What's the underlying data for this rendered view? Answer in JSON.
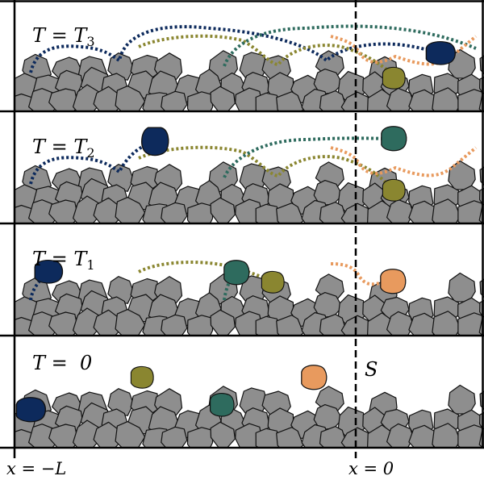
{
  "panels": [
    {
      "label": "T = T",
      "subscript": "3"
    },
    {
      "label": "T = T",
      "subscript": "2"
    },
    {
      "label": "T = T",
      "subscript": "1"
    },
    {
      "label": "T =  0"
    }
  ],
  "source_label": "S",
  "axis_labels": [
    "x = −L",
    "x = 0"
  ]
}
